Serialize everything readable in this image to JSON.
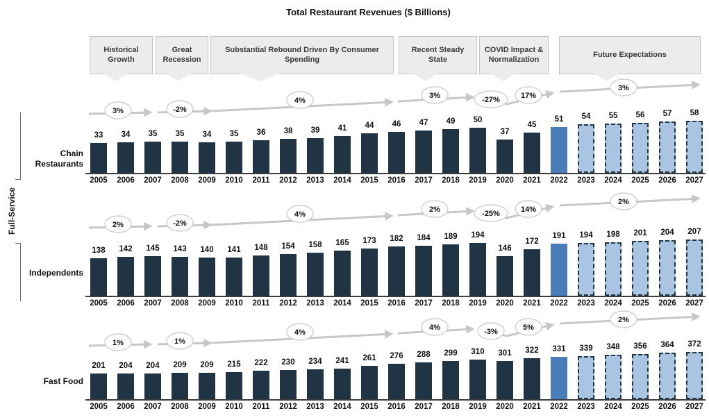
{
  "title": "Total Restaurant Revenues ($ Billions)",
  "group_label": "Full-Service",
  "phases": [
    {
      "label": "Historical Growth"
    },
    {
      "label": "Great Recession"
    },
    {
      "label": "Substantial Rebound Driven By Consumer Spending"
    },
    {
      "label": "Recent Steady State"
    },
    {
      "label": "COVID Impact & Normalization"
    },
    {
      "label": "Future Expectations"
    }
  ],
  "chart_data": {
    "type": "bar",
    "title": "Total Restaurant Revenues ($ Billions)",
    "grid": false,
    "legend_position": "none",
    "categories": [
      "2005",
      "2006",
      "2007",
      "2008",
      "2009",
      "2010",
      "2011",
      "2012",
      "2013",
      "2014",
      "2015",
      "2016",
      "2017",
      "2018",
      "2019",
      "2020",
      "2021",
      "2022",
      "2023",
      "2024",
      "2025",
      "2026",
      "2027"
    ],
    "segments": {
      "historical": "2005-2021",
      "current": "2022",
      "forecast": "2023-2027"
    },
    "series": [
      {
        "name": "Chain Restaurants",
        "values": [
          33,
          34,
          35,
          35,
          34,
          35,
          36,
          38,
          39,
          41,
          44,
          46,
          47,
          49,
          50,
          37,
          45,
          51,
          54,
          55,
          56,
          57,
          58
        ],
        "growth_rates": [
          "3%",
          "-2%",
          "4%",
          "3%",
          "-27%",
          "17%",
          "3%"
        ]
      },
      {
        "name": "Independents",
        "values": [
          138,
          142,
          145,
          143,
          140,
          141,
          148,
          154,
          158,
          165,
          173,
          182,
          184,
          189,
          194,
          146,
          172,
          191,
          194,
          198,
          201,
          204,
          207
        ],
        "growth_rates": [
          "2%",
          "-2%",
          "4%",
          "2%",
          "-25%",
          "14%",
          "2%"
        ]
      },
      {
        "name": "Fast Food",
        "values": [
          201,
          204,
          204,
          209,
          209,
          215,
          222,
          230,
          234,
          241,
          261,
          276,
          288,
          299,
          310,
          301,
          322,
          331,
          339,
          348,
          356,
          364,
          372
        ],
        "growth_rates": [
          "1%",
          "1%",
          "4%",
          "4%",
          "-3%",
          "5%",
          "2%"
        ]
      }
    ]
  },
  "colors": {
    "bar_historical": "#203443",
    "bar_current": "#4a7cba",
    "bar_forecast": "#a9c5e2",
    "forecast_border": "#203443",
    "arrow": "#c7c7c7",
    "badge_border": "#cfcfcf",
    "phase_fill": "#ececec",
    "phase_border": "#c3c3c3"
  }
}
